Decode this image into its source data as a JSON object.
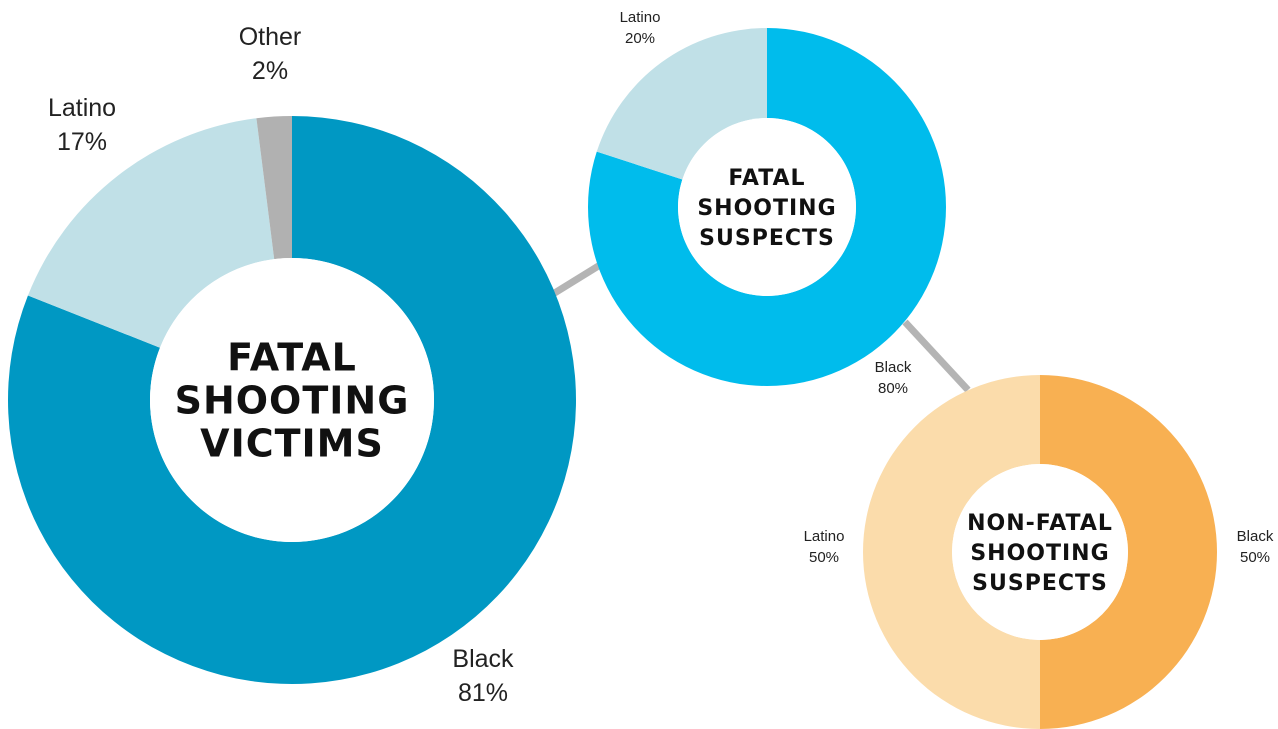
{
  "chart_data": [
    {
      "type": "pie",
      "title": "",
      "center_title": [
        "FATAL",
        "SHOOTING",
        "VICTIMS"
      ],
      "slices": [
        {
          "category": "Black",
          "value": 81,
          "label": "81%",
          "color": "#0098c3"
        },
        {
          "category": "Latino",
          "value": 17,
          "label": "17%",
          "color": "#c0e0e7"
        },
        {
          "category": "Other",
          "value": 2,
          "label": "2%",
          "color": "#b1b1b1"
        }
      ]
    },
    {
      "type": "pie",
      "title": "",
      "center_title": [
        "FATAL",
        "SHOOTING",
        "SUSPECTS"
      ],
      "slices": [
        {
          "category": "Black",
          "value": 80,
          "label": "80%",
          "color": "#00bcec"
        },
        {
          "category": "Latino",
          "value": 20,
          "label": "20%",
          "color": "#c0e0e7"
        }
      ]
    },
    {
      "type": "pie",
      "title": "",
      "center_title": [
        "NON-FATAL",
        "SHOOTING",
        "SUSPECTS"
      ],
      "slices": [
        {
          "category": "Black",
          "value": 50,
          "label": "50%",
          "color": "#f8b052"
        },
        {
          "category": "Latino",
          "value": 50,
          "label": "50%",
          "color": "#fbdcab"
        }
      ]
    }
  ],
  "connector_color": "#b4b4b4"
}
